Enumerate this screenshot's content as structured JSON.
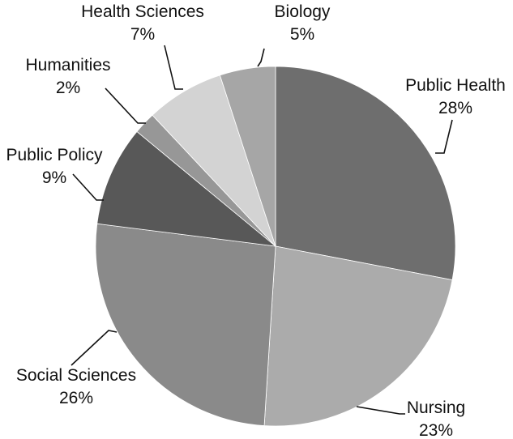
{
  "chart_data": {
    "type": "pie",
    "title": "",
    "slices": [
      {
        "label": "Public Health",
        "value": 28,
        "value_text": "28%",
        "color": "#6e6e6e"
      },
      {
        "label": "Nursing",
        "value": 23,
        "value_text": "23%",
        "color": "#ababab"
      },
      {
        "label": "Social Sciences",
        "value": 26,
        "value_text": "26%",
        "color": "#8a8a8a"
      },
      {
        "label": "Public Policy",
        "value": 9,
        "value_text": "9%",
        "color": "#585858"
      },
      {
        "label": "Humanities",
        "value": 2,
        "value_text": "2%",
        "color": "#979797"
      },
      {
        "label": "Health Sciences",
        "value": 7,
        "value_text": "7%",
        "color": "#d3d3d3"
      },
      {
        "label": "Biology",
        "value": 5,
        "value_text": "5%",
        "color": "#a6a6a6"
      }
    ],
    "start_angle": "12 o'clock",
    "direction": "clockwise",
    "legend": "none"
  }
}
